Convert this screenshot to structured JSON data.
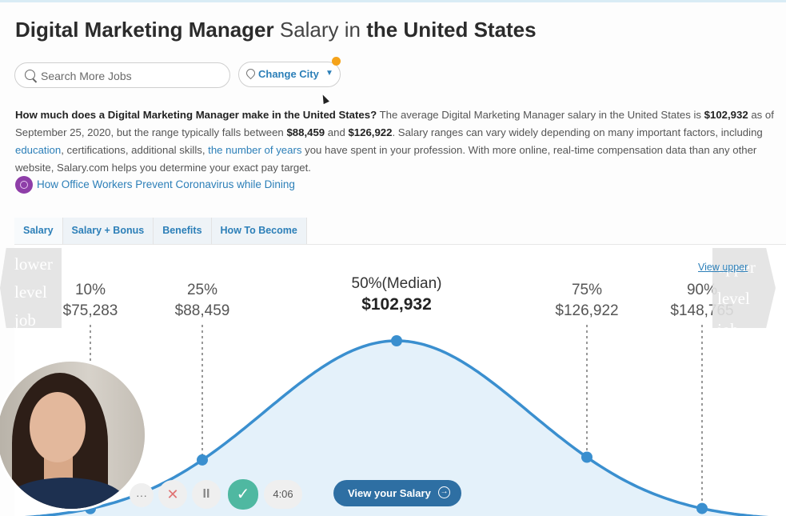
{
  "header": {
    "title_job": "Digital Marketing Manager",
    "title_mid": " Salary in ",
    "title_loc": "the United States"
  },
  "search": {
    "placeholder": "Search More Jobs",
    "value": ""
  },
  "city_button": {
    "label": "Change City",
    "arrow": "▼"
  },
  "description": {
    "question": "How much does a Digital Marketing Manager make in the United States?",
    "t1": " The average Digital Marketing Manager salary in the United States is ",
    "avg": "$102,932",
    "t2": " as of September 25, 2020, but the range typically falls between ",
    "low": "$88,459",
    "t3": " and ",
    "high": "$126,922",
    "t4": ". Salary ranges can vary widely depending on many important factors, including ",
    "link_education": "education",
    "t5": ", certifications, additional skills, ",
    "link_years": "the number of years",
    "t6": " you have spent in your profession. With more online, real-time compensation data than any other website, Salary.com helps you determine your exact pay target."
  },
  "article_link": "How Office Workers Prevent Coronavirus while Dining",
  "tabs": [
    "Salary",
    "Salary + Bonus",
    "Benefits",
    "How To Become"
  ],
  "nav_left": [
    "lower",
    "level",
    "job"
  ],
  "nav_right": [
    "upper",
    "level",
    "job"
  ],
  "view_upper_link": "View upper",
  "chart_data": {
    "type": "line",
    "title": "",
    "xlabel": "",
    "ylabel": "",
    "percentiles": [
      {
        "label": "10%",
        "value": "$75,283",
        "salary": 75283
      },
      {
        "label": "25%",
        "value": "$88,459",
        "salary": 88459
      },
      {
        "label": "50%(Median)",
        "value": "$102,932",
        "salary": 102932
      },
      {
        "label": "75%",
        "value": "$126,922",
        "salary": 126922
      },
      {
        "label": "90%",
        "value": "$148,765",
        "salary": 148765
      }
    ],
    "curve_color": "#3a8fcf",
    "fill_color": "#e4f1fa"
  },
  "video_controls": {
    "more": "···",
    "close": "✕",
    "pause": "II",
    "confirm": "✓",
    "time": "4:06"
  },
  "view_salary_button": {
    "label": "View your Salary",
    "icon": "→"
  }
}
